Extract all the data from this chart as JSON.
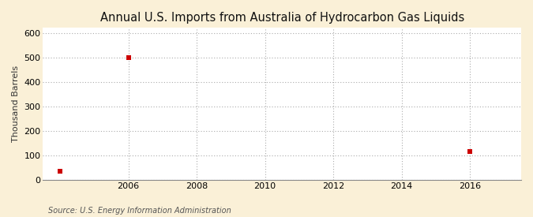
{
  "title": "Annual U.S. Imports from Australia of Hydrocarbon Gas Liquids",
  "ylabel": "Thousand Barrels",
  "source_text": "Source: U.S. Energy Information Administration",
  "background_color": "#FAF0D7",
  "plot_bg_color": "#FFFFFF",
  "grid_color": "#AAAAAA",
  "marker_color": "#CC0000",
  "x_data": [
    2004,
    2006,
    2016
  ],
  "y_data": [
    35,
    500,
    115
  ],
  "xlim": [
    2003.5,
    2017.5
  ],
  "ylim": [
    0,
    620
  ],
  "xticks": [
    2006,
    2008,
    2010,
    2012,
    2014,
    2016
  ],
  "yticks": [
    0,
    100,
    200,
    300,
    400,
    500,
    600
  ],
  "title_fontsize": 10.5,
  "label_fontsize": 8,
  "tick_fontsize": 8,
  "source_fontsize": 7
}
